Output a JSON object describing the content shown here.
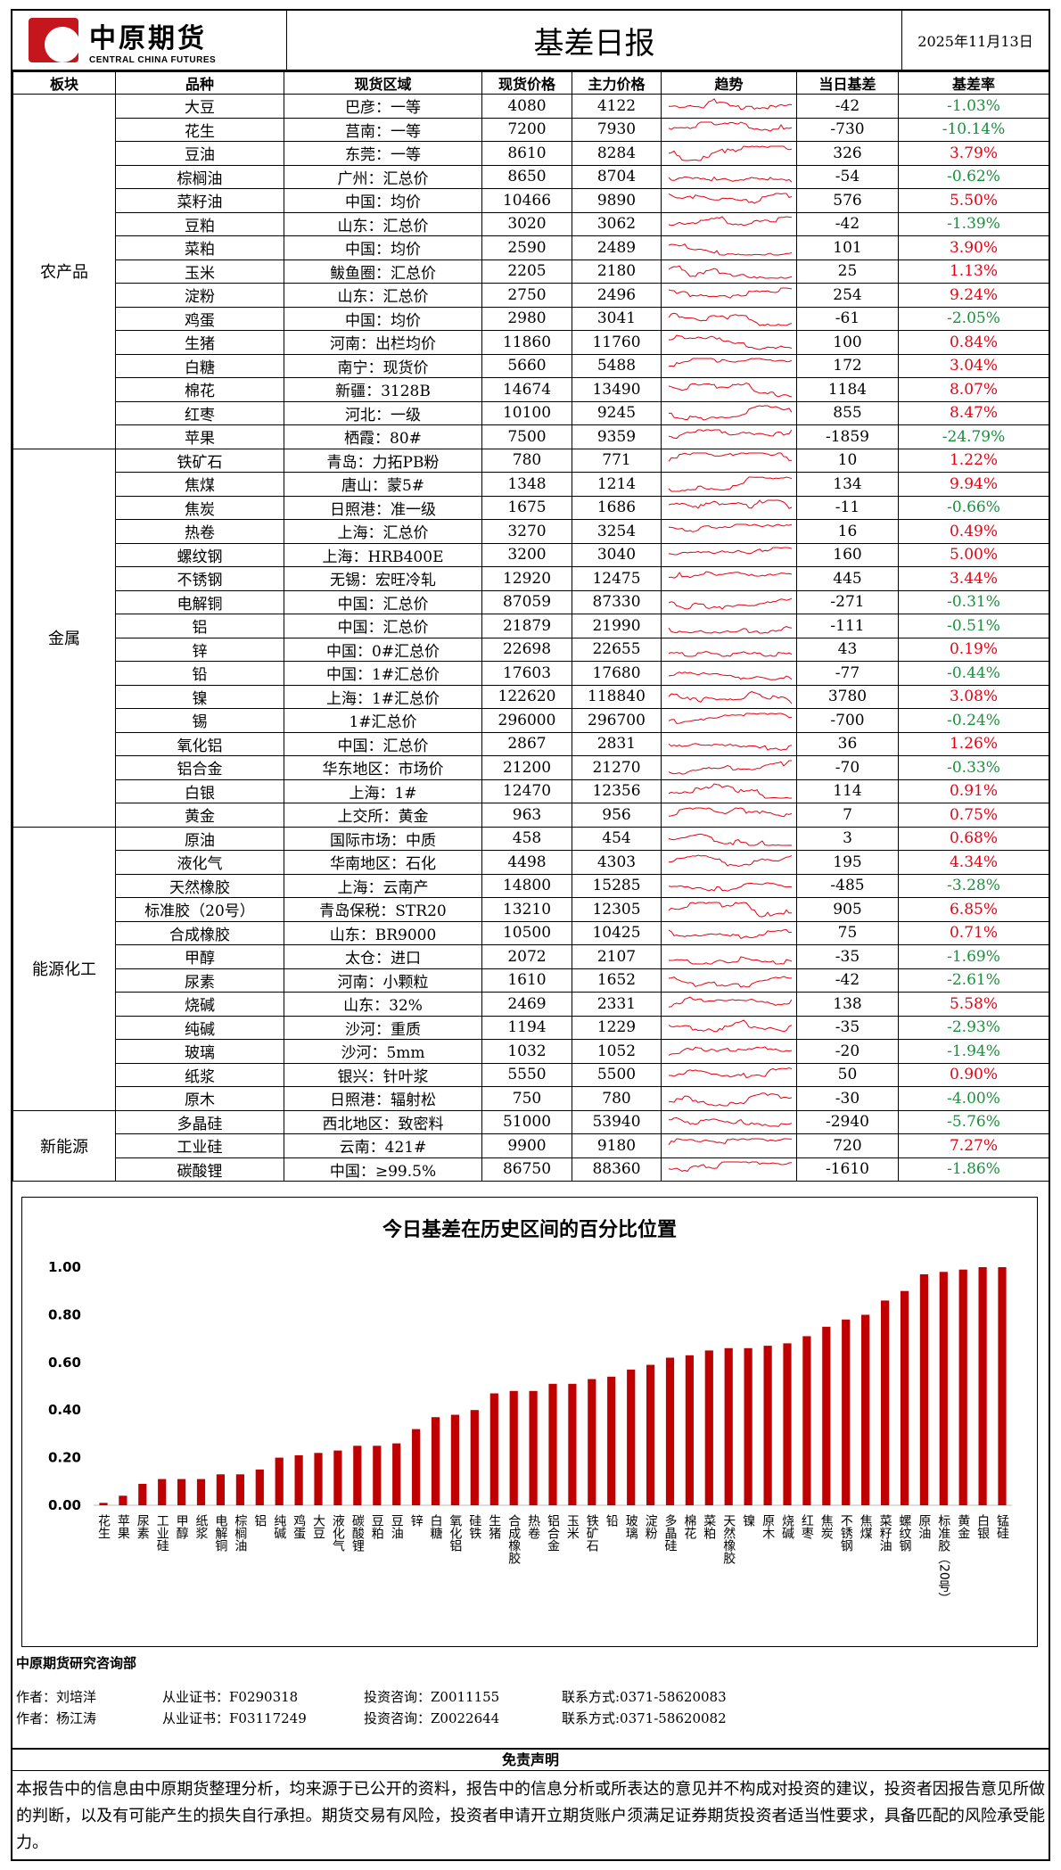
{
  "header": {
    "logo_cn": "中原期货",
    "logo_en": "CENTRAL CHINA FUTURES",
    "title": "基差日报",
    "date": "2025年11月13日"
  },
  "table": {
    "columns": [
      "板块",
      "品种",
      "现货区域",
      "现货价格",
      "主力价格",
      "趋势",
      "当日基差",
      "基差率"
    ],
    "sections": [
      {
        "name": "农产品",
        "rows": [
          [
            "大豆",
            "巴彦：一等",
            "4080",
            "4122",
            "-42",
            "-1.03%"
          ],
          [
            "花生",
            "莒南：一等",
            "7200",
            "7930",
            "-730",
            "-10.14%"
          ],
          [
            "豆油",
            "东莞：一等",
            "8610",
            "8284",
            "326",
            "3.79%"
          ],
          [
            "棕榈油",
            "广州：汇总价",
            "8650",
            "8704",
            "-54",
            "-0.62%"
          ],
          [
            "菜籽油",
            "中国：均价",
            "10466",
            "9890",
            "576",
            "5.50%"
          ],
          [
            "豆粕",
            "山东：汇总价",
            "3020",
            "3062",
            "-42",
            "-1.39%"
          ],
          [
            "菜粕",
            "中国：均价",
            "2590",
            "2489",
            "101",
            "3.90%"
          ],
          [
            "玉米",
            "鲅鱼圈：汇总价",
            "2205",
            "2180",
            "25",
            "1.13%"
          ],
          [
            "淀粉",
            "山东：汇总价",
            "2750",
            "2496",
            "254",
            "9.24%"
          ],
          [
            "鸡蛋",
            "中国：均价",
            "2980",
            "3041",
            "-61",
            "-2.05%"
          ],
          [
            "生猪",
            "河南：出栏均价",
            "11860",
            "11760",
            "100",
            "0.84%"
          ],
          [
            "白糖",
            "南宁：现货价",
            "5660",
            "5488",
            "172",
            "3.04%"
          ],
          [
            "棉花",
            "新疆：3128B",
            "14674",
            "13490",
            "1184",
            "8.07%"
          ],
          [
            "红枣",
            "河北：一级",
            "10100",
            "9245",
            "855",
            "8.47%"
          ],
          [
            "苹果",
            "栖霞：80#",
            "7500",
            "9359",
            "-1859",
            "-24.79%"
          ]
        ]
      },
      {
        "name": "金属",
        "rows": [
          [
            "铁矿石",
            "青岛：力拓PB粉",
            "780",
            "771",
            "10",
            "1.22%"
          ],
          [
            "焦煤",
            "唐山：蒙5#",
            "1348",
            "1214",
            "134",
            "9.94%"
          ],
          [
            "焦炭",
            "日照港：准一级",
            "1675",
            "1686",
            "-11",
            "-0.66%"
          ],
          [
            "热卷",
            "上海：汇总价",
            "3270",
            "3254",
            "16",
            "0.49%"
          ],
          [
            "螺纹钢",
            "上海：HRB400E",
            "3200",
            "3040",
            "160",
            "5.00%"
          ],
          [
            "不锈钢",
            "无锡：宏旺冷轧",
            "12920",
            "12475",
            "445",
            "3.44%"
          ],
          [
            "电解铜",
            "中国：汇总价",
            "87059",
            "87330",
            "-271",
            "-0.31%"
          ],
          [
            "铝",
            "中国：汇总价",
            "21879",
            "21990",
            "-111",
            "-0.51%"
          ],
          [
            "锌",
            "中国：0#汇总价",
            "22698",
            "22655",
            "43",
            "0.19%"
          ],
          [
            "铅",
            "中国：1#汇总价",
            "17603",
            "17680",
            "-77",
            "-0.44%"
          ],
          [
            "镍",
            "上海：1#汇总价",
            "122620",
            "118840",
            "3780",
            "3.08%"
          ],
          [
            "锡",
            "1#汇总价",
            "296000",
            "296700",
            "-700",
            "-0.24%"
          ],
          [
            "氧化铝",
            "中国：汇总价",
            "2867",
            "2831",
            "36",
            "1.26%"
          ],
          [
            "铝合金",
            "华东地区：市场价",
            "21200",
            "21270",
            "-70",
            "-0.33%"
          ],
          [
            "白银",
            "上海：1#",
            "12470",
            "12356",
            "114",
            "0.91%"
          ],
          [
            "黄金",
            "上交所：黄金",
            "963",
            "956",
            "7",
            "0.75%"
          ]
        ]
      },
      {
        "name": "能源化工",
        "rows": [
          [
            "原油",
            "国际市场：中质",
            "458",
            "454",
            "3",
            "0.68%"
          ],
          [
            "液化气",
            "华南地区：石化",
            "4498",
            "4303",
            "195",
            "4.34%"
          ],
          [
            "天然橡胶",
            "上海：云南产",
            "14800",
            "15285",
            "-485",
            "-3.28%"
          ],
          [
            "标准胶（20号）",
            "青岛保税：STR20",
            "13210",
            "12305",
            "905",
            "6.85%"
          ],
          [
            "合成橡胶",
            "山东：BR9000",
            "10500",
            "10425",
            "75",
            "0.71%"
          ],
          [
            "甲醇",
            "太仓：进口",
            "2072",
            "2107",
            "-35",
            "-1.69%"
          ],
          [
            "尿素",
            "河南：小颗粒",
            "1610",
            "1652",
            "-42",
            "-2.61%"
          ],
          [
            "烧碱",
            "山东：32%",
            "2469",
            "2331",
            "138",
            "5.58%"
          ],
          [
            "纯碱",
            "沙河：重质",
            "1194",
            "1229",
            "-35",
            "-2.93%"
          ],
          [
            "玻璃",
            "沙河：5mm",
            "1032",
            "1052",
            "-20",
            "-1.94%"
          ],
          [
            "纸浆",
            "银兴：针叶浆",
            "5550",
            "5500",
            "50",
            "0.90%"
          ],
          [
            "原木",
            "日照港：辐射松",
            "750",
            "780",
            "-30",
            "-4.00%"
          ]
        ]
      },
      {
        "name": "新能源",
        "rows": [
          [
            "多晶硅",
            "西北地区：致密料",
            "51000",
            "53940",
            "-2940",
            "-5.76%"
          ],
          [
            "工业硅",
            "云南：421#",
            "9900",
            "9180",
            "720",
            "7.27%"
          ],
          [
            "碳酸锂",
            "中国：≥99.5%",
            "86750",
            "88360",
            "-1610",
            "-1.86%"
          ]
        ]
      }
    ]
  },
  "chart_data": {
    "type": "bar",
    "title": "今日基差在历史区间的百分比位置",
    "ylim": [
      0,
      1
    ],
    "yticks": [
      "0.00",
      "0.20",
      "0.40",
      "0.60",
      "0.80",
      "1.00"
    ],
    "bar_color": "#c00000",
    "categories": [
      "花生",
      "苹果",
      "尿素",
      "工业硅",
      "甲醇",
      "纸浆",
      "电解铜",
      "棕榈油",
      "铝",
      "纯碱",
      "鸡蛋",
      "大豆",
      "液化气",
      "碳酸锂",
      "豆粕",
      "豆油",
      "锌",
      "白糖",
      "氧化铝",
      "硅铁",
      "生猪",
      "合成橡胶",
      "热卷",
      "铝合金",
      "玉米",
      "铁矿石",
      "铅",
      "玻璃",
      "淀粉",
      "多晶硅",
      "棉花",
      "菜粕",
      "天然橡胶",
      "镍",
      "原木",
      "烧碱",
      "红枣",
      "焦炭",
      "不锈钢",
      "焦煤",
      "菜籽油",
      "螺纹钢",
      "原油",
      "标准胶（20号）",
      "黄金",
      "白银",
      "锰硅"
    ],
    "values": [
      0.01,
      0.04,
      0.09,
      0.11,
      0.11,
      0.11,
      0.13,
      0.13,
      0.15,
      0.2,
      0.21,
      0.22,
      0.23,
      0.25,
      0.25,
      0.26,
      0.32,
      0.37,
      0.38,
      0.4,
      0.47,
      0.48,
      0.48,
      0.51,
      0.51,
      0.53,
      0.54,
      0.57,
      0.59,
      0.62,
      0.63,
      0.65,
      0.66,
      0.66,
      0.67,
      0.68,
      0.71,
      0.75,
      0.78,
      0.8,
      0.86,
      0.9,
      0.97,
      0.98,
      0.99,
      1.0,
      1.0
    ]
  },
  "footer": {
    "dept": "中原期货研究咨询部",
    "authors": [
      {
        "author": "作者：刘培洋",
        "cert": "从业证书：F0290318",
        "advisory": "投资咨询：Z0011155",
        "contact": "联系方式:0371-58620083"
      },
      {
        "author": "作者：杨江涛",
        "cert": "从业证书：F03117249",
        "advisory": "投资咨询：Z0022644",
        "contact": "联系方式:0371-58620082"
      }
    ],
    "disclaimer_title": "免责声明",
    "disclaimer": "本报告中的信息由中原期货整理分析，均来源于已公开的资料，报告中的信息分析或所表达的意见并不构成对投资的建议，投资者因报告意见所做的判断，以及有可能产生的损失自行承担。期货交易有风险，投资者申请开立期货账户须满足证券期货投资者适当性要求，具备匹配的风险承受能力。"
  }
}
